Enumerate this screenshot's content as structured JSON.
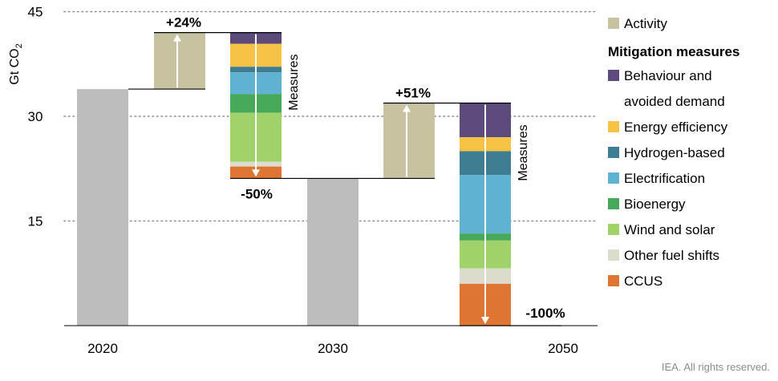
{
  "chart_data": {
    "type": "bar",
    "subtype": "waterfall",
    "ylabel": "Gt CO2",
    "yticks": [
      15,
      30,
      45
    ],
    "ylim": [
      0,
      45
    ],
    "grid": "horizontal dotted",
    "legend_position": "right",
    "x_labels": [
      "2020",
      "2030",
      "2050"
    ],
    "totals": [
      {
        "year": "2020",
        "value": 33.9
      },
      {
        "year": "2030",
        "value": 21.1
      },
      {
        "year": "2050",
        "value": 0
      }
    ],
    "activity": [
      {
        "from": 33.9,
        "to": 42.0,
        "label": "+24%"
      },
      {
        "from": 21.1,
        "to": 31.9,
        "label": "+51%"
      }
    ],
    "measure_blocks": [
      {
        "label": "-50%",
        "arrow_label": "Measures",
        "segments": [
          {
            "measure": "Behaviour and avoided demand",
            "value": 1.6
          },
          {
            "measure": "Energy efficiency",
            "value": 3.3
          },
          {
            "measure": "Hydrogen-based",
            "value": 0.8
          },
          {
            "measure": "Electrification",
            "value": 3.1
          },
          {
            "measure": "Bioenergy",
            "value": 2.7
          },
          {
            "measure": "Wind and solar",
            "value": 7.0
          },
          {
            "measure": "Other fuel shifts",
            "value": 0.7
          },
          {
            "measure": "CCUS",
            "value": 1.7
          }
        ]
      },
      {
        "label": "-100%",
        "arrow_label": "Measures",
        "segments": [
          {
            "measure": "Behaviour and avoided demand",
            "value": 4.9
          },
          {
            "measure": "Energy efficiency",
            "value": 2.0
          },
          {
            "measure": "Hydrogen-based",
            "value": 3.4
          },
          {
            "measure": "Electrification",
            "value": 8.4
          },
          {
            "measure": "Bioenergy",
            "value": 1.0
          },
          {
            "measure": "Wind and solar",
            "value": 4.0
          },
          {
            "measure": "Other fuel shifts",
            "value": 2.2
          },
          {
            "measure": "CCUS",
            "value": 6.0
          }
        ]
      }
    ]
  },
  "legend": {
    "activity": "Activity",
    "heading": "Mitigation measures",
    "items": [
      {
        "label_lines": [
          "Behaviour and",
          "avoided demand"
        ],
        "color": "#5c4a7d"
      },
      {
        "label_lines": [
          "Energy efficiency"
        ],
        "color": "#f5c243"
      },
      {
        "label_lines": [
          "Hydrogen-based"
        ],
        "color": "#3f7d93"
      },
      {
        "label_lines": [
          "Electrification"
        ],
        "color": "#5fb2d1"
      },
      {
        "label_lines": [
          "Bioenergy"
        ],
        "color": "#48a85a"
      },
      {
        "label_lines": [
          "Wind and solar"
        ],
        "color": "#9fd36a"
      },
      {
        "label_lines": [
          "Other fuel shifts"
        ],
        "color": "#dcdccd"
      },
      {
        "label_lines": [
          "CCUS"
        ],
        "color": "#df7533"
      }
    ]
  },
  "colors": {
    "total": "#bdbdbd",
    "activity": "#c7c2a0",
    "grid": "#8c8c8c"
  },
  "ylabel_main": "Gt CO",
  "ylabel_sub": "2",
  "credit": "IEA. All rights reserved."
}
